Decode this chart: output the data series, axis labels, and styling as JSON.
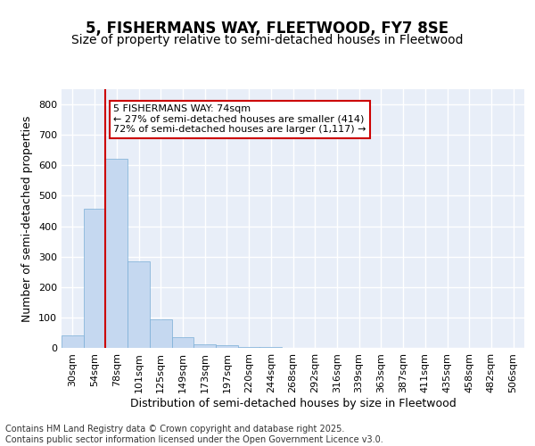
{
  "title1": "5, FISHERMANS WAY, FLEETWOOD, FY7 8SE",
  "title2": "Size of property relative to semi-detached houses in Fleetwood",
  "xlabel": "Distribution of semi-detached houses by size in Fleetwood",
  "ylabel": "Number of semi-detached properties",
  "categories": [
    "30sqm",
    "54sqm",
    "78sqm",
    "101sqm",
    "125sqm",
    "149sqm",
    "173sqm",
    "197sqm",
    "220sqm",
    "244sqm",
    "268sqm",
    "292sqm",
    "316sqm",
    "339sqm",
    "363sqm",
    "387sqm",
    "411sqm",
    "435sqm",
    "458sqm",
    "482sqm",
    "506sqm"
  ],
  "values": [
    42,
    456,
    620,
    285,
    95,
    35,
    12,
    8,
    3,
    3,
    0,
    0,
    0,
    0,
    0,
    0,
    0,
    0,
    0,
    0,
    0
  ],
  "bar_color": "#c5d8f0",
  "bar_edge_color": "#7aaed6",
  "vline_color": "#cc0000",
  "annotation_text": "5 FISHERMANS WAY: 74sqm\n← 27% of semi-detached houses are smaller (414)\n72% of semi-detached houses are larger (1,117) →",
  "annotation_box_facecolor": "#ffffff",
  "annotation_box_edgecolor": "#cc0000",
  "ylim": [
    0,
    850
  ],
  "yticks": [
    0,
    100,
    200,
    300,
    400,
    500,
    600,
    700,
    800
  ],
  "background_color": "#e8eef8",
  "footer_text": "Contains HM Land Registry data © Crown copyright and database right 2025.\nContains public sector information licensed under the Open Government Licence v3.0.",
  "title1_fontsize": 12,
  "title2_fontsize": 10,
  "axis_label_fontsize": 9,
  "tick_fontsize": 8,
  "annotation_fontsize": 8,
  "footer_fontsize": 7,
  "vline_bar_index": 2
}
